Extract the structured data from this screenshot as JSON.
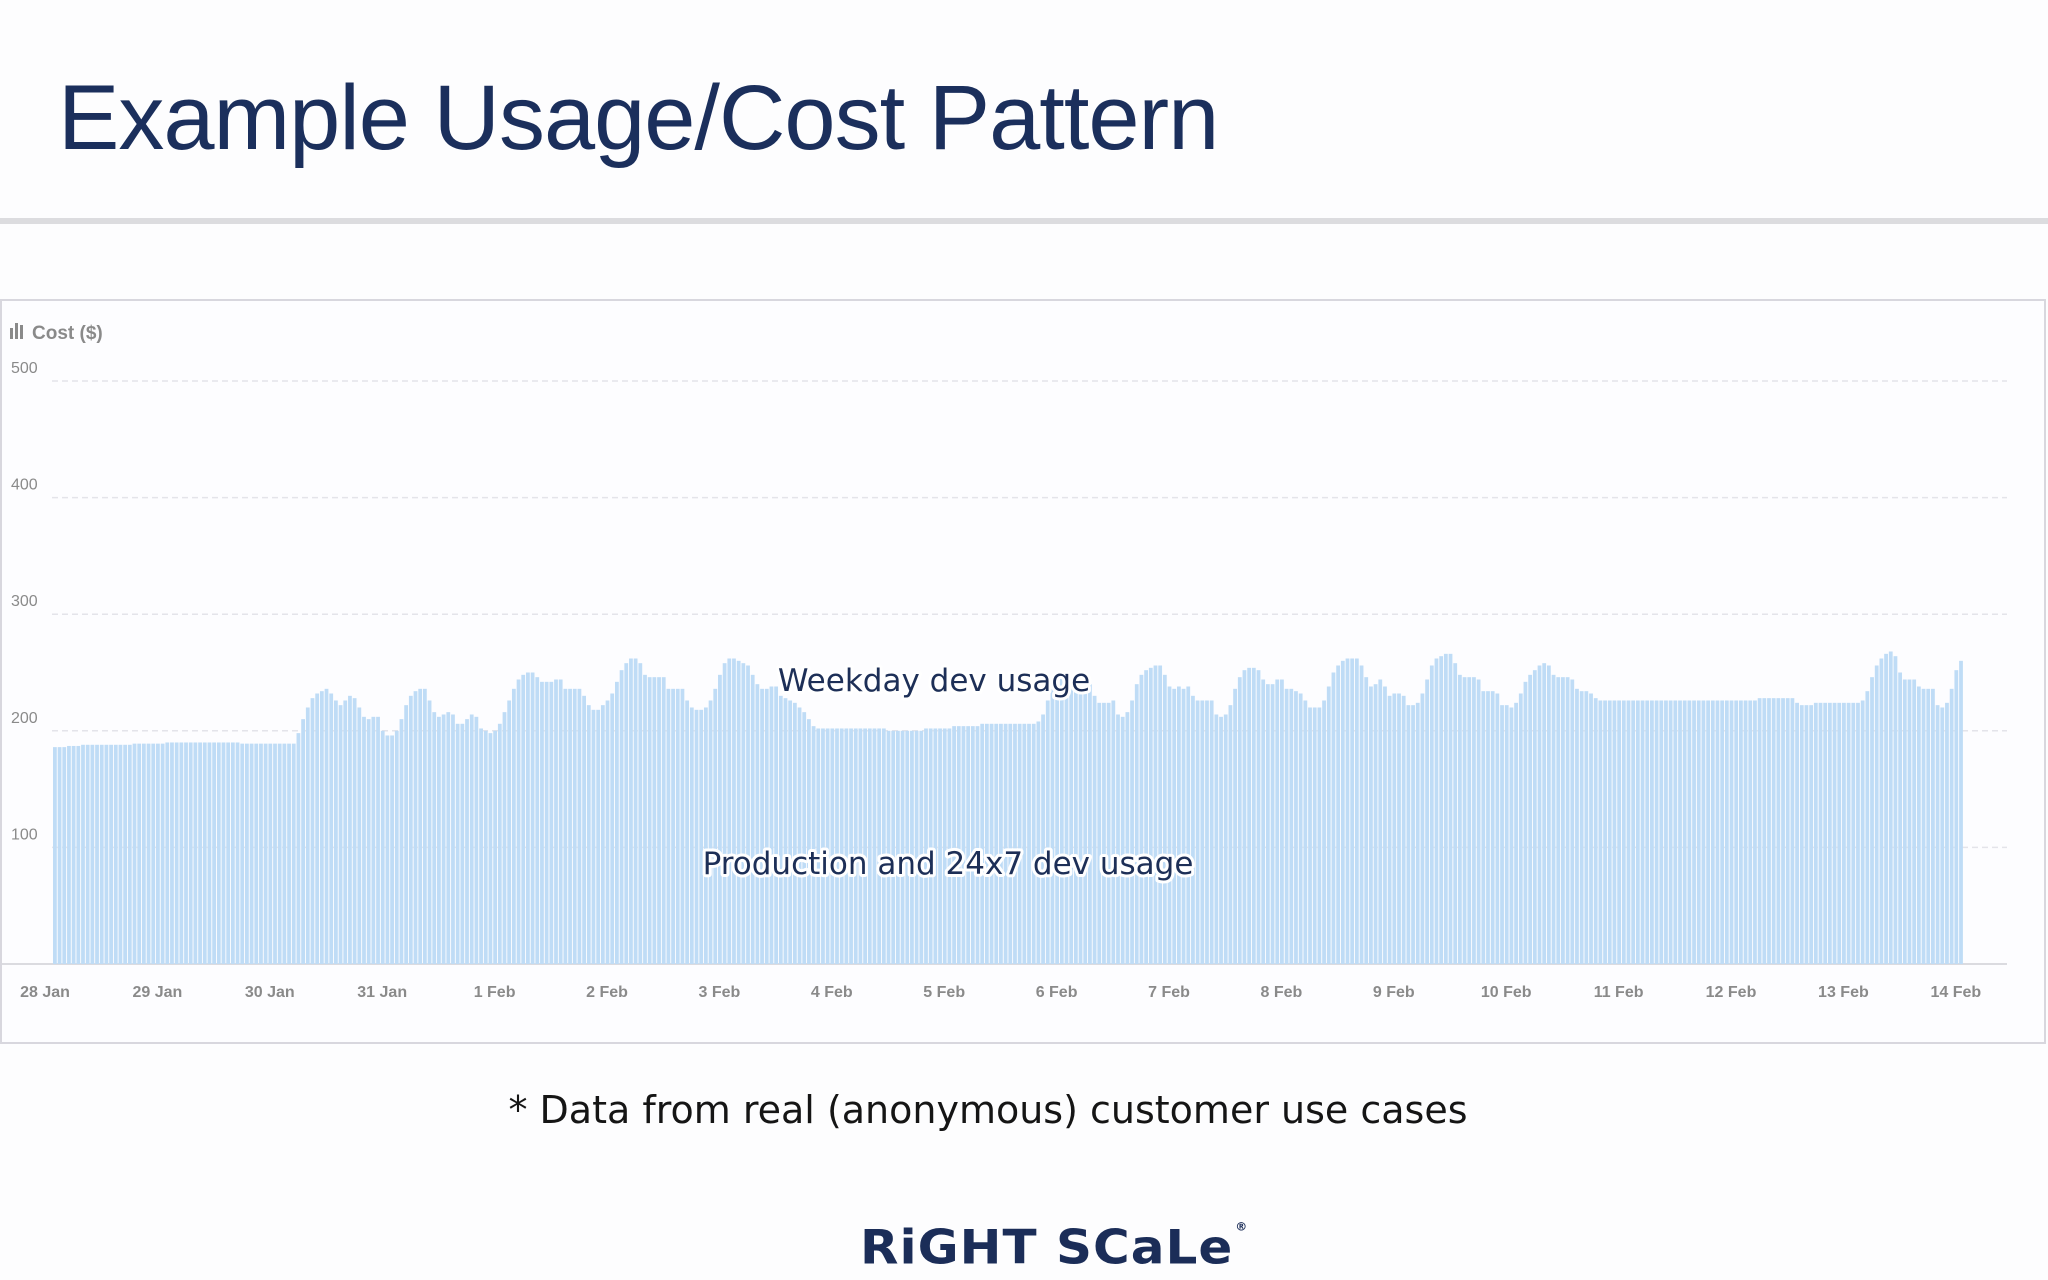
{
  "slide": {
    "title": "Example Usage/Cost Pattern",
    "footnote": "* Data from real (anonymous) customer use cases",
    "logo_text": "RiGHT SCaLe",
    "logo_mark": "®"
  },
  "colors": {
    "title": "#1b2f5c",
    "bar": "#bfdcf6",
    "grid": "#e4e4ea",
    "axis_text": "#8a8a8a"
  },
  "chart_data": {
    "type": "bar",
    "title": "Cost ($)",
    "title_icon": "bar-chart-icon",
    "ylabel": "Cost ($)",
    "xlabel": "",
    "ylim": [
      0,
      500
    ],
    "yticks": [
      100,
      200,
      300,
      400,
      500
    ],
    "grid": true,
    "x_start": "28 Jan",
    "bars_per_day": 24,
    "xtick_labels": [
      "28 Jan",
      "29 Jan",
      "30 Jan",
      "31 Jan",
      "1 Feb",
      "2 Feb",
      "3 Feb",
      "4 Feb",
      "5 Feb",
      "6 Feb",
      "7 Feb",
      "8 Feb",
      "9 Feb",
      "10 Feb",
      "11 Feb",
      "12 Feb",
      "13 Feb",
      "14 Feb"
    ],
    "annotations": [
      "Weekday dev usage",
      "Production and 24x7 dev usage"
    ],
    "series": [
      {
        "values": [
          186,
          186,
          186,
          187,
          187,
          187,
          188,
          188,
          188,
          188,
          188,
          188,
          188,
          188,
          188,
          188,
          188,
          189,
          189,
          189,
          189,
          189,
          189,
          189,
          190,
          190,
          190,
          190,
          190,
          190,
          190,
          190,
          190,
          190,
          190,
          190,
          190,
          190,
          190,
          190,
          189,
          189,
          189,
          189,
          189,
          189,
          189,
          189,
          189,
          189,
          189,
          189,
          198,
          210,
          220,
          228,
          232,
          234,
          236,
          232,
          226,
          222,
          226,
          230,
          228,
          220,
          212,
          210,
          212,
          212,
          200,
          196,
          196,
          200,
          210,
          222,
          230,
          234,
          236,
          236,
          226,
          216,
          212,
          214,
          216,
          214,
          206,
          206,
          210,
          214,
          212,
          202,
          200,
          198,
          200,
          206,
          216,
          226,
          236,
          244,
          248,
          250,
          250,
          246,
          242,
          242,
          242,
          244,
          244,
          236,
          236,
          236,
          236,
          230,
          222,
          218,
          218,
          222,
          226,
          232,
          242,
          252,
          258,
          262,
          262,
          258,
          248,
          246,
          246,
          246,
          246,
          236,
          236,
          236,
          236,
          226,
          220,
          218,
          218,
          220,
          226,
          236,
          248,
          258,
          262,
          262,
          260,
          258,
          256,
          248,
          240,
          236,
          236,
          238,
          238,
          230,
          228,
          226,
          224,
          220,
          216,
          210,
          204,
          202,
          202,
          202,
          202,
          202,
          202,
          202,
          202,
          202,
          202,
          202,
          202,
          202,
          202,
          202,
          200,
          200,
          200,
          200,
          200,
          200,
          200,
          200,
          202,
          202,
          202,
          202,
          202,
          202,
          204,
          204,
          204,
          204,
          204,
          204,
          206,
          206,
          206,
          206,
          206,
          206,
          206,
          206,
          206,
          206,
          206,
          206,
          208,
          214,
          226,
          238,
          246,
          250,
          248,
          242,
          238,
          234,
          236,
          240,
          230,
          224,
          224,
          224,
          226,
          214,
          212,
          216,
          226,
          240,
          248,
          252,
          254,
          256,
          256,
          248,
          238,
          236,
          238,
          236,
          238,
          230,
          226,
          226,
          226,
          226,
          214,
          212,
          214,
          222,
          236,
          246,
          252,
          254,
          254,
          252,
          244,
          240,
          240,
          244,
          244,
          236,
          236,
          234,
          232,
          226,
          220,
          220,
          220,
          226,
          238,
          250,
          256,
          260,
          262,
          262,
          262,
          256,
          246,
          238,
          240,
          244,
          238,
          230,
          232,
          232,
          230,
          222,
          222,
          224,
          232,
          244,
          256,
          262,
          264,
          266,
          266,
          258,
          248,
          246,
          246,
          246,
          244,
          234,
          234,
          234,
          232,
          222,
          222,
          220,
          224,
          232,
          242,
          248,
          252,
          256,
          258,
          256,
          248,
          246,
          246,
          246,
          244,
          236,
          234,
          234,
          232,
          228,
          226,
          226,
          226,
          226,
          226,
          226,
          226,
          226,
          226,
          226,
          226,
          226,
          226,
          226,
          226,
          226,
          226,
          226,
          226,
          226,
          226,
          226,
          226,
          226,
          226,
          226,
          226,
          226,
          226,
          226,
          226,
          226,
          226,
          226,
          228,
          228,
          228,
          228,
          228,
          228,
          228,
          228,
          224,
          222,
          222,
          222,
          224,
          224,
          224,
          224,
          224,
          224,
          224,
          224,
          224,
          224,
          226,
          234,
          246,
          256,
          262,
          266,
          268,
          264,
          250,
          244,
          244,
          244,
          238,
          236,
          236,
          236,
          222,
          220,
          224,
          236,
          252,
          260
        ]
      }
    ]
  }
}
